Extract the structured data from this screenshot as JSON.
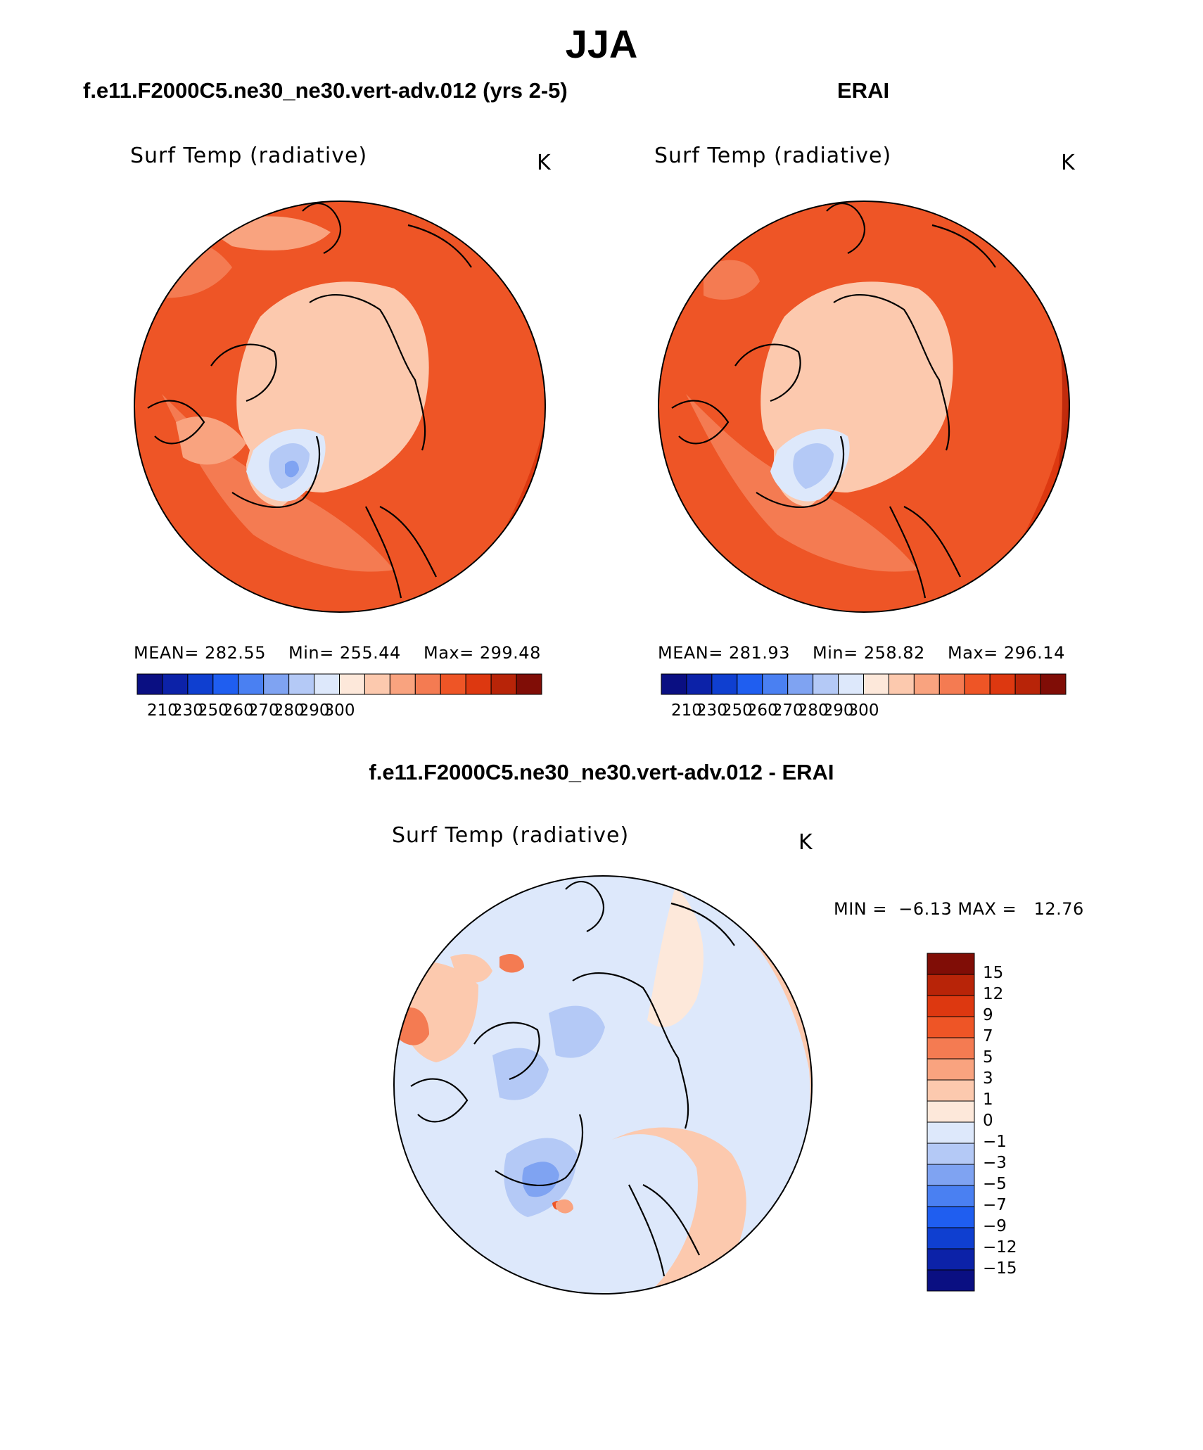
{
  "season": "JJA",
  "left_panel": {
    "title": "f.e11.F2000C5.ne30_ne30.vert-adv.012 (yrs 2-5)",
    "variable": "Surf Temp (radiative)",
    "units": "K",
    "mean_label": "MEAN= 282.55",
    "min_label": "Min= 255.44",
    "max_label": "Max= 299.48"
  },
  "right_panel": {
    "title": "ERAI",
    "variable": "Surf Temp (radiative)",
    "units": "K",
    "mean_label": "MEAN= 281.93",
    "min_label": "Min= 258.82",
    "max_label": "Max= 296.14"
  },
  "diff_panel": {
    "title": "f.e11.F2000C5.ne30_ne30.vert-adv.012 - ERAI",
    "variable": "Surf Temp (radiative)",
    "units": "K",
    "minmax_label": "MIN =  −6.13 MAX =   12.76"
  },
  "abs_colorbar": {
    "colors": [
      "#0a0f82",
      "#0c22a8",
      "#0f3fd0",
      "#1f5ef0",
      "#4a80f2",
      "#7fa3f2",
      "#b4c9f6",
      "#dde8fb",
      "#fde8da",
      "#fcc9ae",
      "#f9a37f",
      "#f47b52",
      "#ee5526",
      "#dd3810",
      "#b82408",
      "#800d06"
    ],
    "tick_labels": [
      "210",
      "230",
      "250",
      "260",
      "270",
      "280",
      "290",
      "300"
    ]
  },
  "diff_colorbar": {
    "colors_top_to_bottom": [
      "#800d06",
      "#b82408",
      "#dd3810",
      "#ee5526",
      "#f47b52",
      "#f9a37f",
      "#fcc9ae",
      "#fde8da",
      "#dde8fb",
      "#b4c9f6",
      "#7fa3f2",
      "#4a80f2",
      "#1f5ef0",
      "#0f3fd0",
      "#0c22a8",
      "#0a0f82"
    ],
    "tick_labels": [
      "15",
      "12",
      "9",
      "7",
      "5",
      "3",
      "1",
      "0",
      "−1",
      "−3",
      "−5",
      "−7",
      "−9",
      "−12",
      "−15"
    ]
  }
}
